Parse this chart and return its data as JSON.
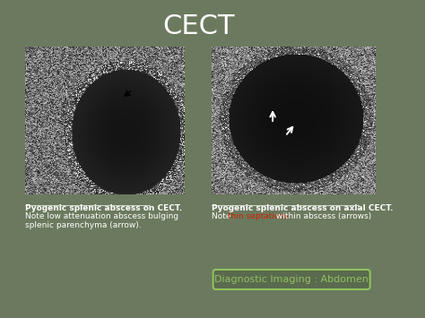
{
  "title": "CECT",
  "title_color": "#ffffff",
  "title_fontsize": 22,
  "bg_color": "#6b7a5e",
  "panel_bg": "#6b7a5e",
  "caption1_bold": "Pyogenic splenic abscess on CECT.",
  "caption1_normal": "\nNote low attenuation abscess bulging\nsplenic parenchyma (arrow).",
  "caption2_bold": "Pyogenic splenic abscess on axial CECT.",
  "caption2_red": "thin septations",
  "caption2_normal_pre": "\nNote ",
  "caption2_normal_post": " within abscess (arrows)",
  "caption_color": "#ffffff",
  "caption_red_color": "#cc2200",
  "badge_text": "Diagnostic Imaging : Abdomen",
  "badge_text_color": "#90c060",
  "badge_border_color": "#90c060",
  "badge_bg": "#5a6a4e",
  "caption_fontsize": 6.5,
  "badge_fontsize": 8
}
